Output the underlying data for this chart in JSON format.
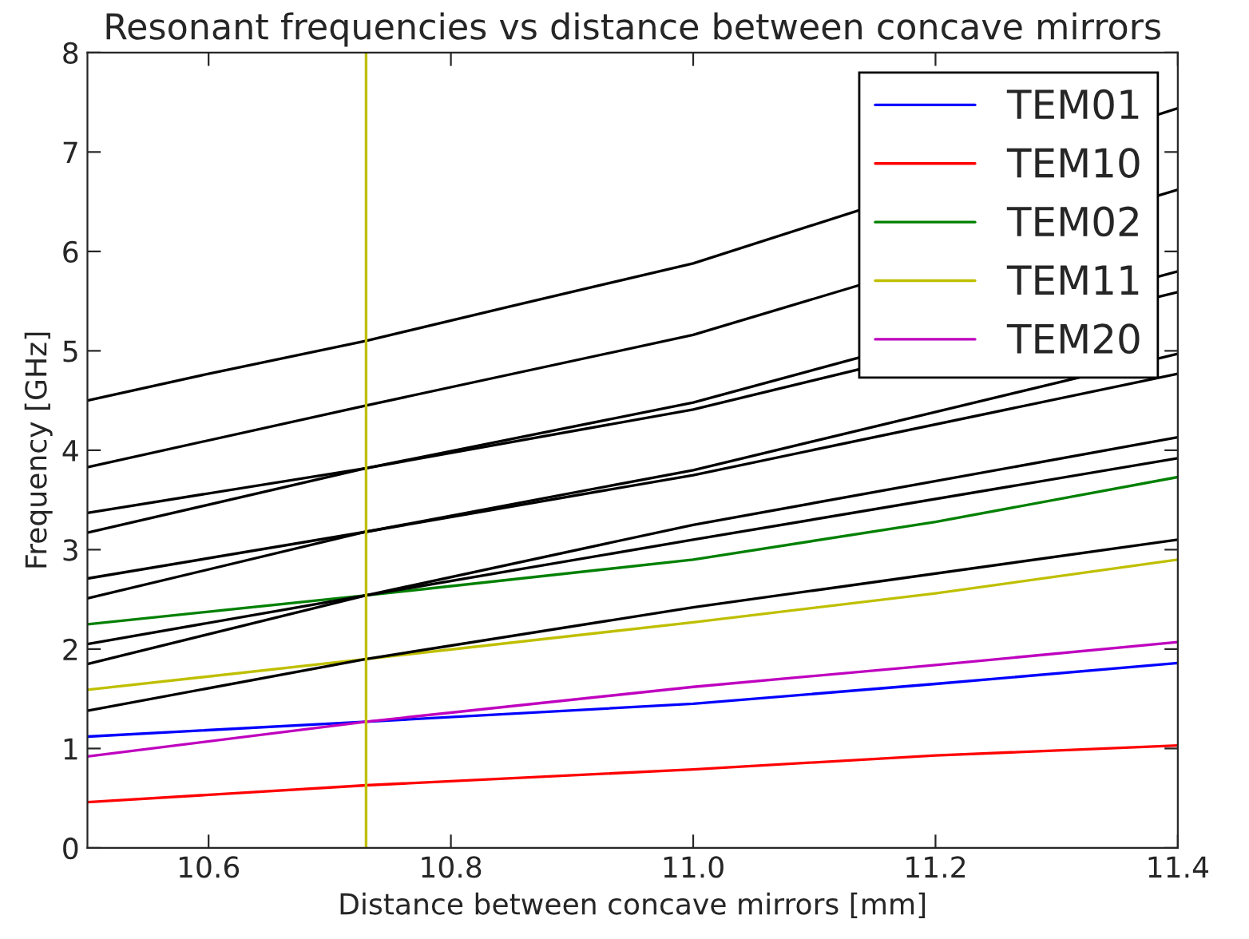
{
  "chart_data": {
    "type": "line",
    "title": "Resonant frequencies vs distance between concave mirrors",
    "xlabel": "Distance between concave mirrors [mm]",
    "ylabel": "Frequency [GHz]",
    "xlim": [
      10.5,
      11.4
    ],
    "xticks": [
      10.6,
      10.8,
      {
        "value": 11.0,
        "label": "11.0"
      },
      11.2,
      11.4
    ],
    "ylim": [
      0,
      8
    ],
    "yticks": [
      0,
      1,
      2,
      3,
      4,
      5,
      6,
      7,
      8
    ],
    "grid": false,
    "legend": "top right",
    "ref_lines": [
      {
        "axis": "x",
        "value": 10.73,
        "color": "#bfbf00"
      }
    ],
    "series": [
      {
        "name": "TEM01",
        "color": "#0000ff",
        "x": [
          10.5,
          10.73,
          11.0,
          11.2,
          11.4
        ],
        "values": [
          1.12,
          1.27,
          1.45,
          1.65,
          1.86
        ]
      },
      {
        "name": "TEM10",
        "color": "#ff0000",
        "x": [
          10.5,
          10.73,
          11.0,
          11.2,
          11.4
        ],
        "values": [
          0.46,
          0.63,
          0.79,
          0.93,
          1.03
        ]
      },
      {
        "name": "TEM02",
        "color": "#008000",
        "x": [
          10.5,
          10.73,
          11.0,
          11.2,
          11.4
        ],
        "values": [
          2.25,
          2.54,
          2.9,
          3.28,
          3.73
        ]
      },
      {
        "name": "TEM11",
        "color": "#bfbf00",
        "x": [
          10.5,
          10.73,
          11.0,
          11.2,
          11.4
        ],
        "values": [
          1.59,
          1.9,
          2.27,
          2.56,
          2.9
        ]
      },
      {
        "name": "TEM20",
        "color": "#bf00bf",
        "x": [
          10.5,
          10.73,
          11.0,
          11.2,
          11.4
        ],
        "values": [
          0.92,
          1.27,
          1.62,
          1.84,
          2.07
        ]
      },
      {
        "color": "#000000",
        "x": [
          10.5,
          10.6,
          10.73,
          10.85,
          11.0,
          11.4
        ],
        "values": [
          4.5,
          4.77,
          5.1,
          5.45,
          5.88,
          7.44
        ]
      },
      {
        "color": "#000000",
        "x": [
          10.5,
          10.73,
          11.0,
          11.4
        ],
        "values": [
          3.83,
          4.45,
          5.16,
          6.62
        ]
      },
      {
        "color": "#000000",
        "x": [
          10.5,
          10.73,
          11.0,
          11.4
        ],
        "values": [
          3.37,
          3.82,
          4.41,
          5.59
        ]
      },
      {
        "color": "#000000",
        "x": [
          10.5,
          10.73,
          11.0,
          11.4
        ],
        "values": [
          3.17,
          3.82,
          4.48,
          5.8
        ]
      },
      {
        "color": "#000000",
        "x": [
          10.5,
          10.73,
          11.0,
          11.4
        ],
        "values": [
          2.71,
          3.18,
          3.75,
          4.77
        ]
      },
      {
        "color": "#000000",
        "x": [
          10.5,
          10.73,
          11.0,
          11.4
        ],
        "values": [
          2.51,
          3.18,
          3.8,
          4.97
        ]
      },
      {
        "color": "#000000",
        "x": [
          10.5,
          10.73,
          11.0,
          11.4
        ],
        "values": [
          2.05,
          2.54,
          3.1,
          3.92
        ]
      },
      {
        "color": "#000000",
        "x": [
          10.5,
          10.73,
          11.0,
          11.4
        ],
        "values": [
          1.85,
          2.54,
          3.25,
          4.13
        ]
      },
      {
        "color": "#000000",
        "x": [
          10.5,
          10.73,
          11.0,
          11.4
        ],
        "values": [
          1.38,
          1.9,
          2.42,
          3.1
        ]
      }
    ]
  }
}
